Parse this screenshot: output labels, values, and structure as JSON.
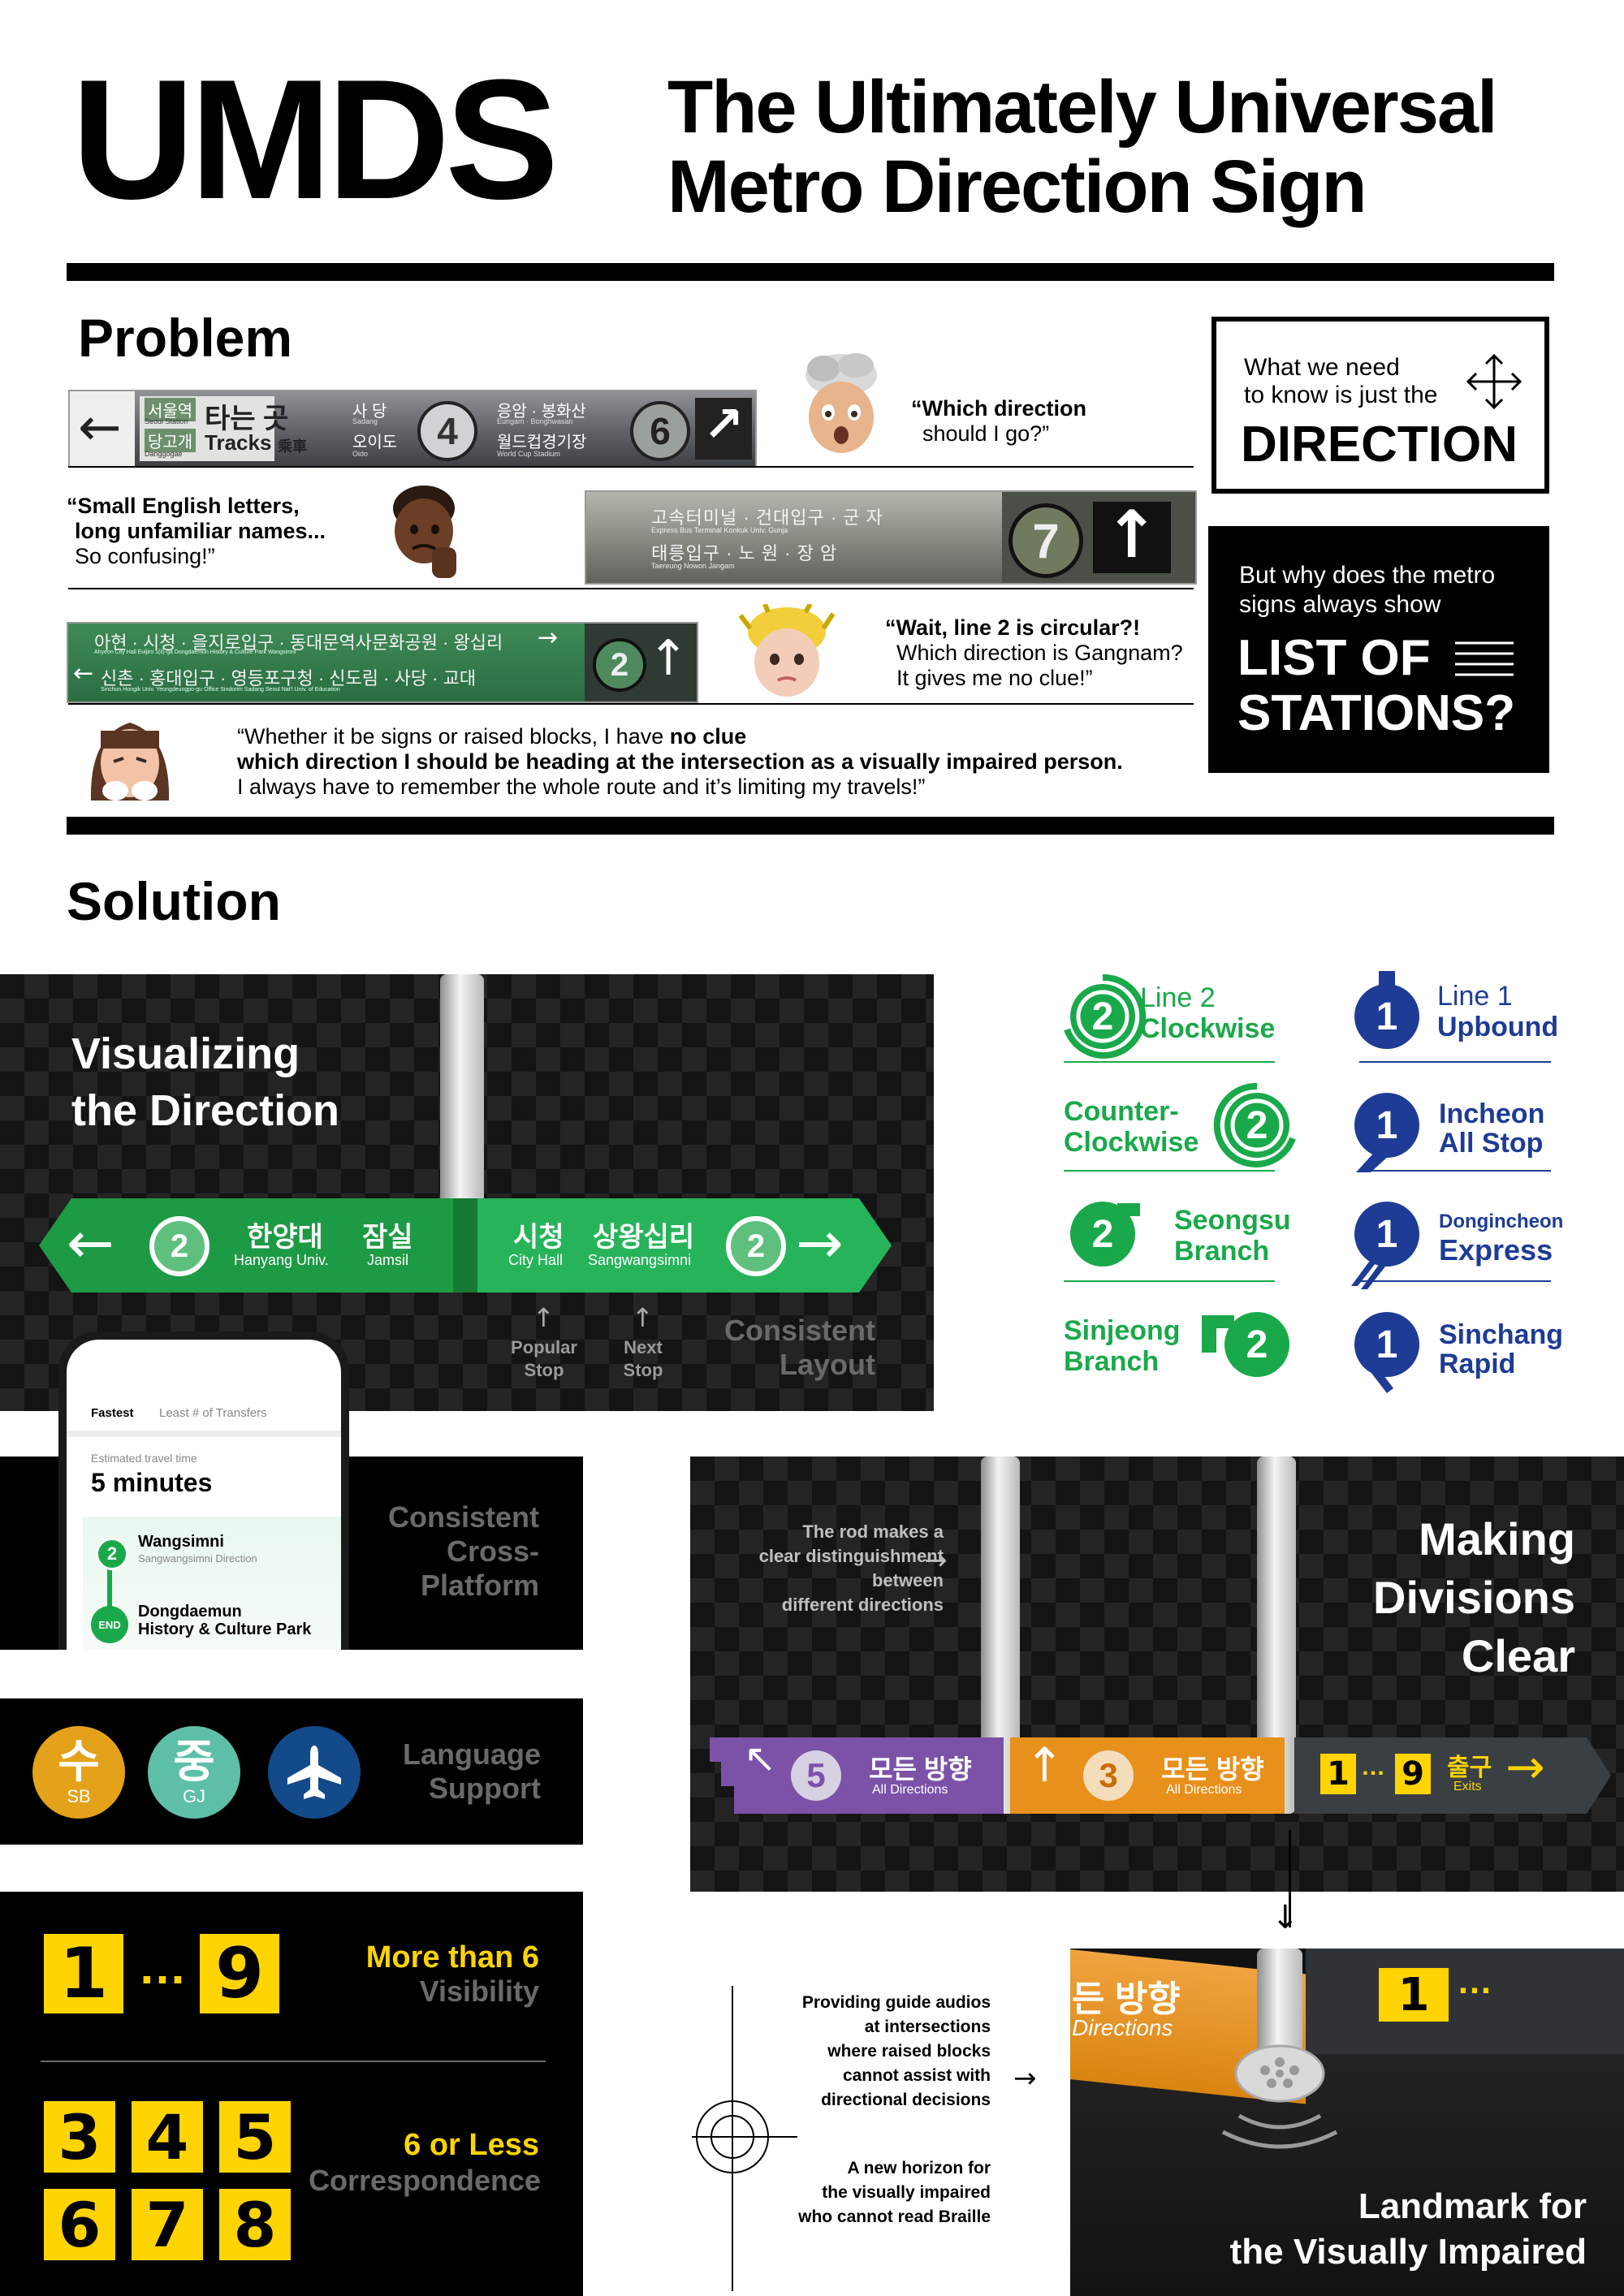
{
  "header": {
    "acronym": "UMDS",
    "title_line1": "The Ultimately Universal",
    "title_line2": "Metro Direction Sign"
  },
  "problem": {
    "heading": "Problem",
    "quote1": {
      "line1": "“Which direction",
      "line2": "should I go?”"
    },
    "quote2": {
      "line1": "“Small English letters,",
      "line2": "long unfamiliar names...",
      "line3": "So confusing!”"
    },
    "quote3": {
      "line1": "“Wait, line 2 is circular?!",
      "line2": "Which direction is Gangnam?",
      "line3": "It gives me no clue!”"
    },
    "quote4": {
      "line1_a": "“Whether it be signs or raised blocks, I have ",
      "line1_b": "no clue",
      "line2": "which direction I should be heading at the intersection as a visually impaired person.",
      "line3": "I always have to remember the whole route and it’s limiting my travels!”"
    },
    "sign1": {
      "station1": "서울역",
      "station1_en": "Seoul Station",
      "station2": "당고개",
      "station2_en": "Danggogae",
      "tracks_ko": "타는 곳",
      "tracks_en": "Tracks",
      "tracks_cn": "乘車",
      "s3": "사 당",
      "s3_en": "Sadang",
      "s4": "오이도",
      "s4_en": "Oido",
      "line4": "4",
      "s5": "응암 · 봉화산",
      "s5_en": "Eungam · Bonghwasan",
      "s6": "월드컵경기장",
      "s6_en": "World Cup Stadium",
      "line6": "6"
    },
    "sign2": {
      "row1": "고속터미널 · 건대입구 · 군 자",
      "row1_en": "Express Bus Terminal   Konkuk Univ.   Gunja",
      "row2": "태릉입구 · 노 원 · 장 암",
      "row2_en": "Taereung   Nowon   Jangam",
      "line": "7"
    },
    "sign3": {
      "row1": "아현 · 시청 · 을지로입구 · 동대문역사문화공원 · 왕십리",
      "row1_en": "Ahyeon   City Hall   Euljiro 1(il)-ga   Dongdaemun History & Culture Park   Wangsimni",
      "row2": "신촌 · 홍대입구 · 영등포구청 · 신도림 · 사당 · 교대",
      "row2_en": "Sinchon   Hongik Univ.   Yeongdeungpo-gu Office   Sindorim   Sadang   Seoul Nat'l Univ. of Education",
      "line": "2"
    }
  },
  "side_boxes": {
    "box1": {
      "line1": "What we need",
      "line2": "to know is just the",
      "big": "DIRECTION"
    },
    "box2": {
      "line1": "But why does the metro",
      "line2": "signs always show",
      "big1": "LIST OF",
      "big2": "STATIONS?"
    }
  },
  "solution": {
    "heading": "Solution",
    "visualizing": {
      "title_line1": "Visualizing",
      "title_line2": "the Direction",
      "left_ko1": "한양대",
      "left_en1": "Hanyang Univ.",
      "left_ko2": "잠실",
      "left_en2": "Jamsil",
      "right_ko1": "시청",
      "right_en1": "City Hall",
      "right_ko2": "상왕십리",
      "right_en2": "Sangwangsimni",
      "line": "2",
      "popular_stop_1": "Popular",
      "popular_stop_2": "Stop",
      "next_stop_1": "Next",
      "next_stop_2": "Stop",
      "consistent_1": "Consistent",
      "consistent_2": "Layout"
    },
    "legend": {
      "l2_clockwise": {
        "num": "2",
        "line1": "Line 2",
        "line2": "Clockwise"
      },
      "l2_counter": {
        "num": "2",
        "line1": "Counter-",
        "line2": "Clockwise"
      },
      "l2_seongsu": {
        "num": "2",
        "line1": "Seongsu",
        "line2": "Branch"
      },
      "l2_sinjeong": {
        "num": "2",
        "line1": "Sinjeong",
        "line2": "Branch"
      },
      "l1_upbound": {
        "num": "1",
        "line1": "Line 1",
        "line2": "Upbound"
      },
      "l1_incheon": {
        "num": "1",
        "line1": "Incheon",
        "line2": "All Stop"
      },
      "l1_dongincheon": {
        "num": "1",
        "line1": "Dongincheon",
        "line2": "Express"
      },
      "l1_sinchang": {
        "num": "1",
        "line1": "Sinchang",
        "line2": "Rapid"
      }
    },
    "phone": {
      "tab1": "Fastest",
      "tab2": "Least # of Transfers",
      "est_label": "Estimated travel time",
      "est_value": "5 minutes",
      "stop1": "Wangsimni",
      "stop1_dir": "Sangwangsimni Direction",
      "stop1_num": "2",
      "stop2_line1": "Dongdaemun",
      "stop2_line2": "History & Culture Park",
      "stop2_badge": "END"
    },
    "cross_platform": {
      "line1": "Consistent",
      "line2": "Cross-",
      "line3": "Platform"
    },
    "language": {
      "icon1": "수",
      "icon1_sub": "SB",
      "icon2": "중",
      "icon2_sub": "GJ",
      "line1": "Language",
      "line2": "Support"
    },
    "visibility": {
      "top_left": "1",
      "top_dots": "…",
      "top_right": "9",
      "top_line1": "More than 6",
      "top_line2": "Visibility",
      "grid": [
        "3",
        "4",
        "5",
        "6",
        "7",
        "8"
      ],
      "bottom_line1": "6 or Less",
      "bottom_line2": "Correspondence"
    },
    "divisions": {
      "title_line1": "Making",
      "title_line2": "Divisions",
      "title_line3": "Clear",
      "rod_note1": "The rod makes a",
      "rod_note2": "clear distinguishment",
      "rod_note3": "between",
      "rod_note4": "different directions",
      "sign_purple_num": "5",
      "sign_purple_ko": "모든 방향",
      "sign_purple_en": "All Directions",
      "sign_orange_num": "3",
      "sign_orange_ko": "모든 방향",
      "sign_orange_en": "All Directions",
      "sign_dark_a": "1",
      "sign_dark_dots": "…",
      "sign_dark_b": "9",
      "sign_dark_ko": "출구",
      "sign_dark_en": "Exits"
    },
    "impaired": {
      "note1": [
        "Providing guide audios",
        "at intersections",
        "where raised blocks",
        "cannot assist with",
        "directional decisions"
      ],
      "note2": [
        "A new horizon for",
        "the visually impaired",
        "who cannot read Braille"
      ],
      "crop_ko": "든 방향",
      "crop_en": "Directions",
      "crop_num": "1",
      "crop_dots": "…",
      "title_line1": "Landmark for",
      "title_line2": "the Visually Impaired"
    }
  },
  "colors": {
    "green": "#1aa94a",
    "navy": "#1e3c96",
    "yellow": "#ffd400",
    "purple": "#7b52a8",
    "orange": "#e8901c",
    "teal": "#5dbfa8",
    "gold": "#e3a21a",
    "airblue": "#124a8a"
  }
}
